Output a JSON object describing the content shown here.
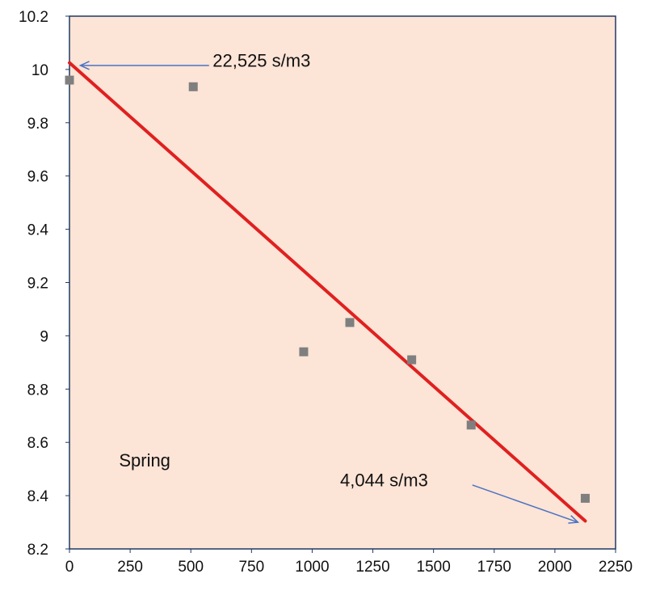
{
  "chart_data": {
    "type": "scatter",
    "title": "",
    "xlabel": "",
    "ylabel": "",
    "xlim": [
      0,
      2250
    ],
    "ylim": [
      8.2,
      10.2
    ],
    "x_ticks": [
      0,
      250,
      500,
      750,
      1000,
      1250,
      1500,
      1750,
      2000,
      2250
    ],
    "y_ticks": [
      8.2,
      8.4,
      8.6,
      8.8,
      9,
      9.2,
      9.4,
      9.6,
      9.8,
      10,
      10.2
    ],
    "grid": false,
    "plot_background": "#fce4d6",
    "frame_color": "#1f3864",
    "points_color": "#7f7f7f",
    "points": [
      {
        "x": 0,
        "y": 9.96
      },
      {
        "x": 510,
        "y": 9.935
      },
      {
        "x": 965,
        "y": 8.94
      },
      {
        "x": 1155,
        "y": 9.05
      },
      {
        "x": 1410,
        "y": 8.91
      },
      {
        "x": 1655,
        "y": 8.665
      },
      {
        "x": 2125,
        "y": 8.39
      }
    ],
    "trendline": {
      "color": "#e02020",
      "start": {
        "x": 0,
        "y": 10.025
      },
      "end": {
        "x": 2125,
        "y": 8.305
      }
    },
    "annotations": [
      {
        "text": "22,525 s/m3",
        "arrow_color": "#4a72c4",
        "text_at": {
          "x": 590,
          "y": 10.01
        },
        "arrow_from": {
          "x": 575,
          "y": 10.015
        },
        "arrow_to": {
          "x": 45,
          "y": 10.015
        }
      },
      {
        "text": "4,044 s/m3",
        "arrow_color": "#4a72c4",
        "text_at": {
          "x": 1115,
          "y": 8.435
        },
        "arrow_from": {
          "x": 1660,
          "y": 8.44
        },
        "arrow_to": {
          "x": 2095,
          "y": 8.3
        }
      }
    ],
    "series_label": {
      "text": "Spring",
      "at": {
        "x": 310,
        "y": 8.51
      }
    }
  }
}
